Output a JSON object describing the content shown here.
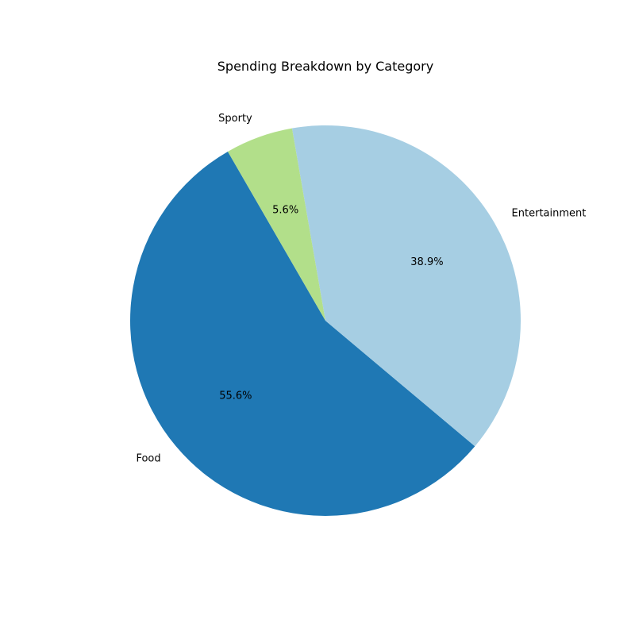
{
  "chart_data": {
    "type": "pie",
    "title": "Spending Breakdown by Category",
    "categories": [
      "Food",
      "Entertainment",
      "Sporty"
    ],
    "values": [
      55.6,
      38.9,
      5.6
    ],
    "percent_labels": [
      "55.6%",
      "38.9%",
      "5.6%"
    ],
    "colors": [
      "#1f78b4",
      "#a6cee3",
      "#b2df8a"
    ],
    "start_angle_deg": 120,
    "direction": "counterclockwise"
  }
}
